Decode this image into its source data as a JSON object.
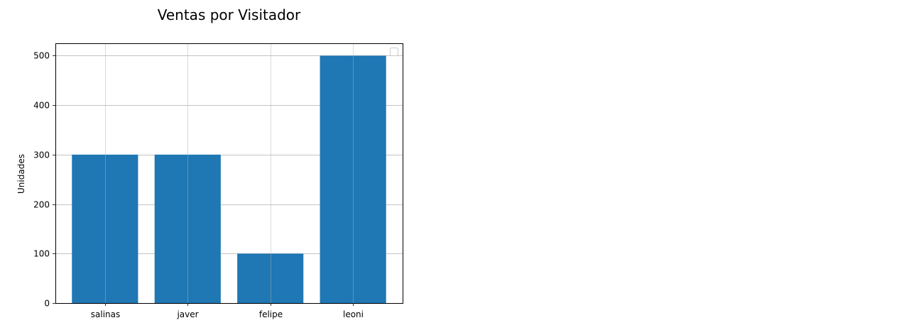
{
  "chart_data": {
    "type": "bar",
    "title": "Ventas por Visitador",
    "xlabel": "",
    "ylabel": "Unidades",
    "categories": [
      "salinas",
      "javer",
      "felipe",
      "leoni"
    ],
    "values": [
      300,
      300,
      100,
      500
    ],
    "ylim": [
      0,
      525
    ],
    "yticks": [
      0,
      100,
      200,
      300,
      400,
      500
    ],
    "grid": true,
    "legend": {
      "position": "upper right",
      "entries": []
    },
    "bar_color": "#1f77b4"
  }
}
